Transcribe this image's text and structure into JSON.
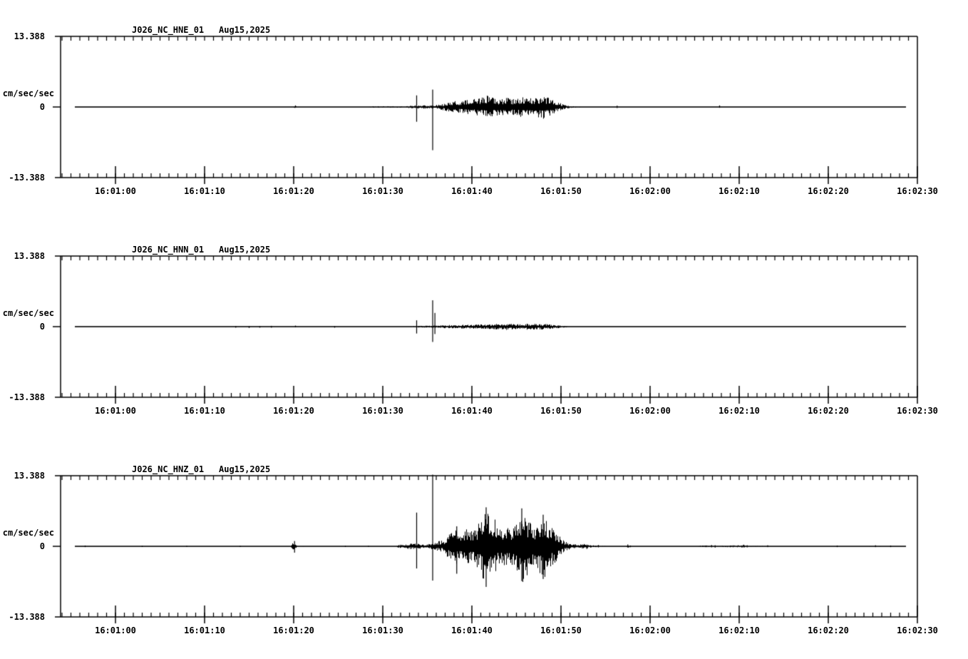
{
  "page": {
    "background_color": "#ffffff",
    "foreground_color": "#000000"
  },
  "chart_data": {
    "type": "line",
    "subtype": "seismogram",
    "layout": "three stacked trace panels, shared time axis",
    "x_axis": {
      "tick_labels": [
        "16:01:00",
        "16:01:10",
        "16:01:20",
        "16:01:30",
        "16:01:40",
        "16:01:50",
        "16:02:00",
        "16:02:10",
        "16:02:20",
        "16:02:30"
      ],
      "tick_seconds": [
        0,
        10,
        20,
        30,
        40,
        50,
        60,
        70,
        80,
        90
      ],
      "minor_tick_interval_seconds": 1,
      "range_seconds": [
        -6.2,
        90
      ],
      "trace_span_seconds": [
        -4.6,
        88.6
      ]
    },
    "y_axis": {
      "unit_label": "cm/sec/sec",
      "tick_labels": [
        "13.388",
        "0",
        "-13.388"
      ],
      "tick_values": [
        13.388,
        0,
        -13.388
      ],
      "range": [
        -13.388,
        13.388
      ],
      "grid": false
    },
    "panels": [
      {
        "id": "hne",
        "title": "J026_NC_HNE_01",
        "date": "Aug15,2025",
        "seed": 11,
        "envelope": [
          [
            -4.6,
            0.05
          ],
          [
            19.8,
            0.05
          ],
          [
            20.1,
            0.25
          ],
          [
            20.4,
            0.06
          ],
          [
            27.0,
            0.08
          ],
          [
            29.0,
            0.14
          ],
          [
            32.5,
            0.14
          ],
          [
            33.4,
            0.3
          ],
          [
            34.3,
            0.35
          ],
          [
            35.2,
            0.3
          ],
          [
            36.4,
            0.5
          ],
          [
            37.2,
            0.8
          ],
          [
            38.2,
            1.2
          ],
          [
            39.2,
            1.3
          ],
          [
            40.2,
            1.5
          ],
          [
            41.0,
            1.8
          ],
          [
            41.6,
            2.2
          ],
          [
            42.2,
            1.9
          ],
          [
            43.0,
            1.6
          ],
          [
            44.0,
            1.8
          ],
          [
            44.8,
            1.5
          ],
          [
            45.5,
            2.1
          ],
          [
            46.2,
            1.7
          ],
          [
            47.0,
            1.7
          ],
          [
            47.9,
            2.3
          ],
          [
            48.6,
            1.8
          ],
          [
            49.2,
            1.2
          ],
          [
            49.8,
            0.8
          ],
          [
            50.4,
            0.4
          ],
          [
            51.2,
            0.15
          ],
          [
            52.5,
            0.1
          ],
          [
            56.5,
            0.08
          ],
          [
            88.6,
            0.05
          ]
        ],
        "spikes": [
          {
            "t": 20.2,
            "up": 0.3,
            "down": 0.1
          },
          {
            "t": 33.8,
            "up": 2.2,
            "down": 2.8
          },
          {
            "t": 35.6,
            "up": 3.3,
            "down": 8.2
          },
          {
            "t": 56.3,
            "up": 0.25,
            "down": 0.2
          },
          {
            "t": 67.8,
            "up": 0.3,
            "down": 0.15
          }
        ]
      },
      {
        "id": "hnn",
        "title": "J026_NC_HNN_01",
        "date": "Aug15,2025",
        "seed": 23,
        "envelope": [
          [
            -4.6,
            0.04
          ],
          [
            12.0,
            0.05
          ],
          [
            14.0,
            0.08
          ],
          [
            19.0,
            0.08
          ],
          [
            21.0,
            0.05
          ],
          [
            30.0,
            0.06
          ],
          [
            32.5,
            0.1
          ],
          [
            34.5,
            0.18
          ],
          [
            36.0,
            0.2
          ],
          [
            37.0,
            0.3
          ],
          [
            38.5,
            0.35
          ],
          [
            40.0,
            0.42
          ],
          [
            41.5,
            0.45
          ],
          [
            42.5,
            0.5
          ],
          [
            43.5,
            0.6
          ],
          [
            44.5,
            0.65
          ],
          [
            45.3,
            0.5
          ],
          [
            46.3,
            0.6
          ],
          [
            47.3,
            0.55
          ],
          [
            48.2,
            0.55
          ],
          [
            49.0,
            0.4
          ],
          [
            50.0,
            0.25
          ],
          [
            51.0,
            0.12
          ],
          [
            52.0,
            0.08
          ],
          [
            67.5,
            0.06
          ],
          [
            68.0,
            0.12
          ],
          [
            68.4,
            0.05
          ],
          [
            88.6,
            0.04
          ]
        ],
        "spikes": [
          {
            "t": 13.5,
            "up": 0.1,
            "down": 0.2
          },
          {
            "t": 15.0,
            "up": 0.1,
            "down": 0.25
          },
          {
            "t": 16.2,
            "up": 0.1,
            "down": 0.2
          },
          {
            "t": 17.5,
            "up": 0.15,
            "down": 0.2
          },
          {
            "t": 20.2,
            "up": 0.2,
            "down": 0.1
          },
          {
            "t": 24.6,
            "up": 0.1,
            "down": 0.2
          },
          {
            "t": 33.8,
            "up": 1.2,
            "down": 1.3
          },
          {
            "t": 35.6,
            "up": 5.0,
            "down": 2.9
          },
          {
            "t": 35.85,
            "up": 2.6,
            "down": 1.4
          }
        ]
      },
      {
        "id": "hnz",
        "title": "J026_NC_HNZ_01",
        "date": "Aug15,2025",
        "seed": 37,
        "envelope": [
          [
            -4.6,
            0.07
          ],
          [
            19.6,
            0.08
          ],
          [
            20.0,
            0.9
          ],
          [
            20.4,
            0.12
          ],
          [
            25.0,
            0.07
          ],
          [
            31.3,
            0.1
          ],
          [
            32.2,
            0.4
          ],
          [
            33.3,
            0.6
          ],
          [
            34.0,
            0.5
          ],
          [
            34.7,
            0.35
          ],
          [
            35.4,
            0.5
          ],
          [
            36.3,
            1.0
          ],
          [
            36.9,
            1.2
          ],
          [
            37.5,
            2.8
          ],
          [
            38.1,
            3.6
          ],
          [
            38.7,
            2.6
          ],
          [
            39.2,
            4.0
          ],
          [
            39.7,
            3.2
          ],
          [
            40.2,
            3.0
          ],
          [
            40.8,
            4.6
          ],
          [
            41.4,
            7.0
          ],
          [
            41.9,
            6.0
          ],
          [
            42.4,
            5.6
          ],
          [
            43.0,
            3.8
          ],
          [
            43.7,
            4.5
          ],
          [
            44.3,
            3.5
          ],
          [
            45.0,
            5.0
          ],
          [
            45.6,
            7.0
          ],
          [
            46.2,
            5.6
          ],
          [
            46.9,
            4.0
          ],
          [
            47.6,
            5.6
          ],
          [
            48.2,
            6.2
          ],
          [
            48.8,
            4.0
          ],
          [
            49.4,
            3.0
          ],
          [
            49.9,
            1.8
          ],
          [
            50.4,
            1.0
          ],
          [
            51.1,
            0.5
          ],
          [
            51.8,
            0.3
          ],
          [
            52.6,
            0.5
          ],
          [
            53.2,
            0.25
          ],
          [
            54.3,
            0.12
          ],
          [
            57.3,
            0.1
          ],
          [
            57.6,
            0.3
          ],
          [
            58.0,
            0.1
          ],
          [
            64.0,
            0.08
          ],
          [
            66.8,
            0.18
          ],
          [
            67.4,
            0.1
          ],
          [
            70.3,
            0.25
          ],
          [
            70.9,
            0.12
          ],
          [
            73.0,
            0.12
          ],
          [
            76.0,
            0.08
          ],
          [
            82.0,
            0.1
          ],
          [
            85.5,
            0.12
          ],
          [
            88.6,
            0.07
          ]
        ],
        "spikes": [
          {
            "t": -3.4,
            "up": 0.15,
            "down": 0.15
          },
          {
            "t": 3.0,
            "up": 0.1,
            "down": 0.12
          },
          {
            "t": 8.0,
            "up": 0.12,
            "down": 0.1
          },
          {
            "t": 14.0,
            "up": 0.1,
            "down": 0.12
          },
          {
            "t": 20.1,
            "up": 1.0,
            "down": 1.2
          },
          {
            "t": 25.8,
            "up": 0.1,
            "down": 0.12
          },
          {
            "t": 28.4,
            "up": 0.12,
            "down": 0.1
          },
          {
            "t": 33.8,
            "up": 6.4,
            "down": 4.2
          },
          {
            "t": 35.6,
            "up": 13.6,
            "down": 6.5
          },
          {
            "t": 38.3,
            "up": 3.8,
            "down": 5.2
          },
          {
            "t": 41.6,
            "up": 7.4,
            "down": 7.7
          },
          {
            "t": 45.6,
            "up": 7.2,
            "down": 6.6
          },
          {
            "t": 48.0,
            "up": 6.0,
            "down": 6.2
          },
          {
            "t": 51.6,
            "up": 0.4,
            "down": 0.3
          },
          {
            "t": 52.4,
            "up": 0.35,
            "down": 0.4
          },
          {
            "t": 52.9,
            "up": 0.3,
            "down": 0.5
          },
          {
            "t": 54.2,
            "up": 0.25,
            "down": 0.2
          },
          {
            "t": 57.5,
            "up": 0.35,
            "down": 0.2
          },
          {
            "t": 66.9,
            "up": 0.25,
            "down": 0.2
          },
          {
            "t": 67.3,
            "up": 0.2,
            "down": 0.25
          },
          {
            "t": 70.5,
            "up": 0.3,
            "down": 0.2
          },
          {
            "t": 70.9,
            "up": 0.2,
            "down": 0.2
          },
          {
            "t": 73.2,
            "up": 0.2,
            "down": 0.15
          },
          {
            "t": 81.0,
            "up": 0.15,
            "down": 0.15
          },
          {
            "t": 85.3,
            "up": 0.2,
            "down": 0.15
          },
          {
            "t": 87.0,
            "up": 0.15,
            "down": 0.15
          }
        ]
      }
    ]
  }
}
